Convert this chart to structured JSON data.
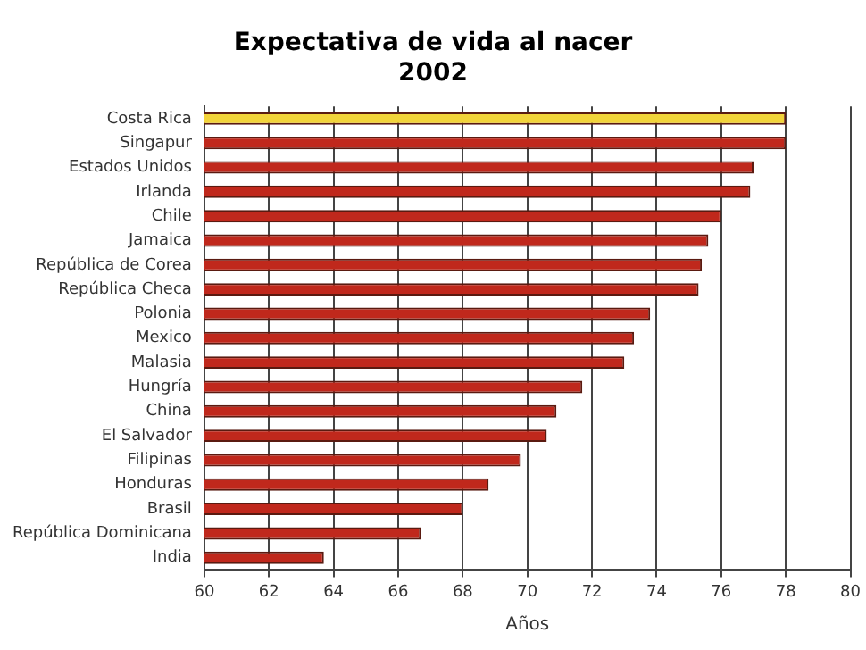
{
  "chart_data": {
    "type": "bar",
    "orientation": "horizontal",
    "title": "Expectativa de vida al nacer\n2002",
    "xlabel": "Años",
    "categories": [
      "Costa Rica",
      "Singapur",
      "Estados Unidos",
      "Irlanda",
      "Chile",
      "Jamaica",
      "República de Corea",
      "República Checa",
      "Polonia",
      "Mexico",
      "Malasia",
      "Hungría",
      "China",
      "El Salvador",
      "Filipinas",
      "Honduras",
      "Brasil",
      "República Dominicana",
      "India"
    ],
    "values": [
      78.0,
      78.0,
      77.0,
      76.9,
      76.0,
      75.6,
      75.4,
      75.3,
      73.8,
      73.3,
      73.0,
      71.7,
      70.9,
      70.6,
      69.8,
      68.8,
      68.0,
      66.7,
      63.7
    ],
    "colors": [
      "#f2d33a",
      "#c0281c",
      "#c0281c",
      "#c0281c",
      "#c0281c",
      "#c0281c",
      "#c0281c",
      "#c0281c",
      "#c0281c",
      "#c0281c",
      "#c0281c",
      "#c0281c",
      "#c0281c",
      "#c0281c",
      "#c0281c",
      "#c0281c",
      "#c0281c",
      "#c0281c",
      "#c0281c"
    ],
    "xlim": [
      60,
      80
    ],
    "xticks": [
      60,
      62,
      64,
      66,
      68,
      70,
      72,
      74,
      76,
      78,
      80
    ],
    "grid": "x"
  }
}
